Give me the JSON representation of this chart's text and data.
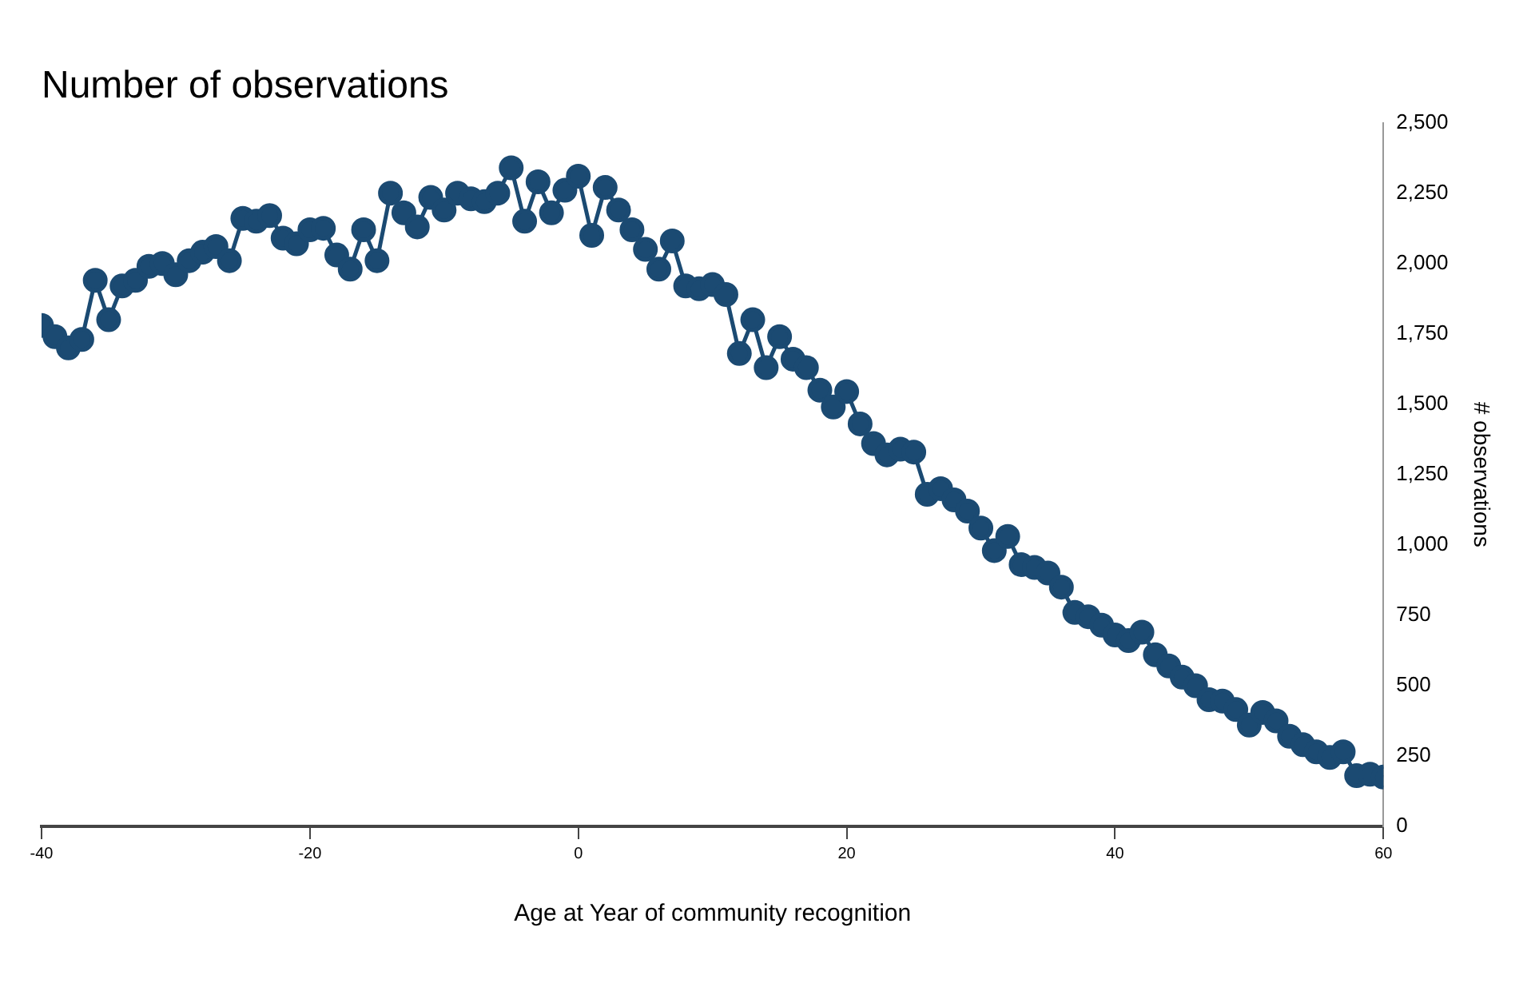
{
  "chart_data": {
    "type": "line",
    "title": "Number of observations",
    "xlabel": "Age at Year of community recognition",
    "ylabel": "# observations",
    "x": [
      -40,
      -39,
      -38,
      -37,
      -36,
      -35,
      -34,
      -33,
      -32,
      -31,
      -30,
      -29,
      -28,
      -27,
      -26,
      -25,
      -24,
      -23,
      -22,
      -21,
      -20,
      -19,
      -18,
      -17,
      -16,
      -15,
      -14,
      -13,
      -12,
      -11,
      -10,
      -9,
      -8,
      -7,
      -6,
      -5,
      -4,
      -3,
      -2,
      -1,
      0,
      1,
      2,
      3,
      4,
      5,
      6,
      7,
      8,
      9,
      10,
      11,
      12,
      13,
      14,
      15,
      16,
      17,
      18,
      19,
      20,
      21,
      22,
      23,
      24,
      25,
      26,
      27,
      28,
      29,
      30,
      31,
      32,
      33,
      34,
      35,
      36,
      37,
      38,
      39,
      40,
      41,
      42,
      43,
      44,
      45,
      46,
      47,
      48,
      49,
      50,
      51,
      52,
      53,
      54,
      55,
      56,
      57,
      58,
      59,
      60
    ],
    "series": [
      {
        "color": "#1b4a72",
        "values": [
          1780,
          1740,
          1700,
          1730,
          1940,
          1800,
          1920,
          1940,
          1990,
          2000,
          1960,
          2010,
          2040,
          2060,
          2010,
          2160,
          2150,
          2170,
          2090,
          2070,
          2120,
          2125,
          2030,
          1980,
          2120,
          2010,
          2250,
          2180,
          2130,
          2235,
          2190,
          2250,
          2230,
          2220,
          2250,
          2340,
          2150,
          2290,
          2180,
          2260,
          2310,
          2100,
          2270,
          2190,
          2120,
          2050,
          1980,
          2080,
          1920,
          1910,
          1925,
          1890,
          1680,
          1800,
          1630,
          1740,
          1660,
          1630,
          1550,
          1490,
          1545,
          1430,
          1360,
          1320,
          1340,
          1330,
          1180,
          1200,
          1160,
          1120,
          1060,
          980,
          1030,
          930,
          920,
          900,
          850,
          760,
          745,
          715,
          680,
          660,
          690,
          610,
          570,
          530,
          500,
          450,
          445,
          415,
          360,
          405,
          375,
          320,
          290,
          265,
          245,
          265,
          180,
          185,
          175
        ]
      }
    ],
    "xlim": [
      -40,
      60
    ],
    "xticks": [
      -40,
      -20,
      0,
      20,
      40,
      60
    ],
    "ylim": [
      0,
      2500
    ],
    "yticks": [
      0,
      250,
      500,
      750,
      {
        "value": 1000,
        "label": "1,000"
      },
      {
        "value": 1250,
        "label": "1,250"
      },
      {
        "value": 1500,
        "label": "1,500"
      },
      {
        "value": 1750,
        "label": "1,750"
      },
      {
        "value": 2000,
        "label": "2,000"
      },
      {
        "value": 2250,
        "label": "2,250"
      },
      {
        "value": 2500,
        "label": "2,500"
      }
    ],
    "grid": false,
    "legend": false,
    "marker": "circle",
    "line_style": "solid"
  }
}
